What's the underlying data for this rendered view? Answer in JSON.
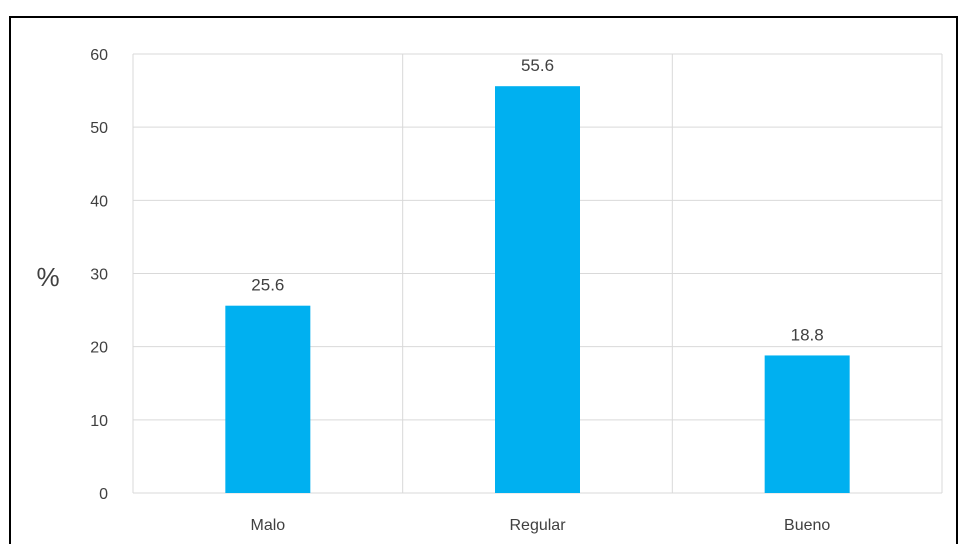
{
  "chart_data": {
    "type": "bar",
    "categories": [
      "Malo",
      "Regular",
      "Bueno"
    ],
    "values": [
      25.6,
      55.6,
      18.8
    ],
    "data_labels": [
      "25.6",
      "55.6",
      "18.8"
    ],
    "title": "",
    "xlabel": "",
    "ylabel": "%",
    "ylim": [
      0,
      60
    ],
    "yticks": [
      "0",
      "10",
      "20",
      "30",
      "40",
      "50",
      "60"
    ],
    "grid": "horizontal and vertical",
    "legend": "none",
    "bar_color": "#00B0F0"
  }
}
